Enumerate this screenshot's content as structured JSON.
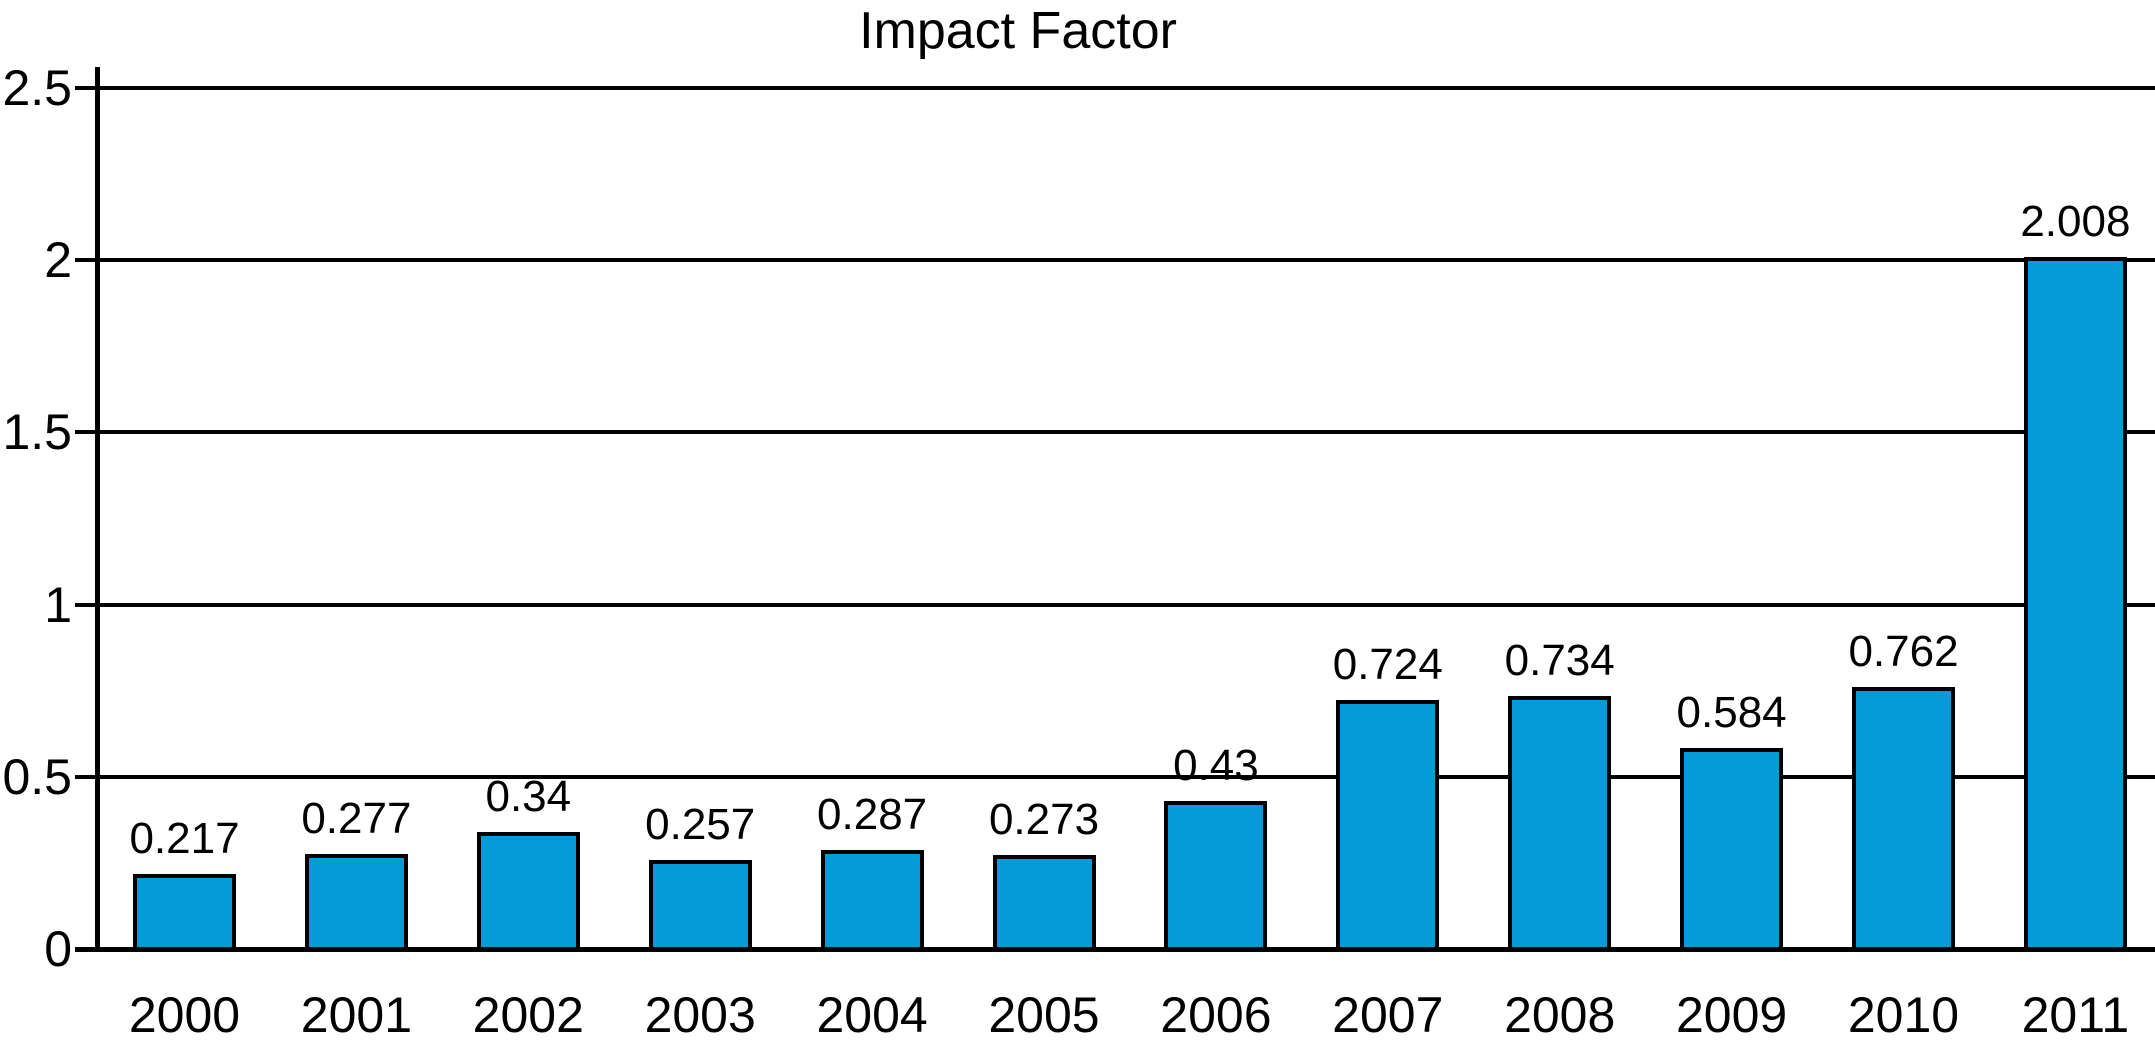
{
  "chart_data": {
    "type": "bar",
    "title": "Impact Factor",
    "categories": [
      "2000",
      "2001",
      "2002",
      "2003",
      "2004",
      "2005",
      "2006",
      "2007",
      "2008",
      "2009",
      "2010",
      "2011"
    ],
    "values": [
      0.217,
      0.277,
      0.34,
      0.257,
      0.287,
      0.273,
      0.43,
      0.724,
      0.734,
      0.584,
      0.762,
      2.008
    ],
    "value_labels": [
      "0.217",
      "0.277",
      "0.34",
      "0.257",
      "0.287",
      "0.273",
      "0.43",
      "0.724",
      "0.734",
      "0.584",
      "0.762",
      "2.008"
    ],
    "xlabel": "",
    "ylabel": "",
    "y_ticks": [
      "0",
      "0.5",
      "1",
      "1.5",
      "2",
      "2.5"
    ],
    "ylim": [
      0,
      2.5
    ],
    "grid": "horizontal gridlines at every 0.5, spanning full width",
    "legend": "none",
    "bar_color": "#049bd8",
    "line_color": "#000000",
    "text_color": "#000000",
    "background_color": "#ffffff"
  }
}
